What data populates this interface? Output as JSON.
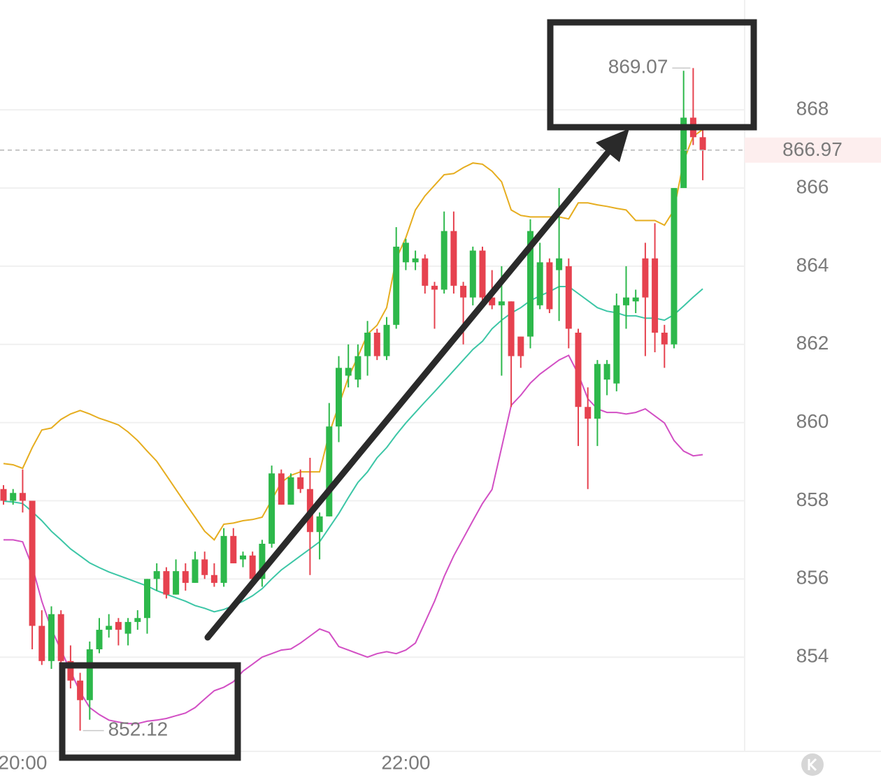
{
  "chart_data": {
    "type": "candlestick",
    "categories": [
      null,
      null,
      "20:00",
      null,
      null,
      null,
      null,
      null,
      null,
      null,
      null,
      null,
      null,
      null,
      null,
      null,
      null,
      null,
      null,
      null,
      null,
      null,
      null,
      null,
      null,
      null,
      null,
      null,
      null,
      null,
      null,
      null,
      null,
      null,
      null,
      null,
      null,
      null,
      null,
      null,
      null,
      null,
      "22:00",
      null,
      null,
      null,
      null,
      null,
      null,
      null,
      null,
      null,
      null,
      null,
      null,
      null,
      null,
      null,
      null,
      null,
      null,
      null,
      null,
      null,
      null,
      null,
      null,
      null,
      null,
      null,
      null,
      null,
      null,
      null
    ],
    "open": [
      858.3,
      858.0,
      858.2,
      858.0,
      854.8,
      853.9,
      855.1,
      853.9,
      853.4,
      852.9,
      854.2,
      854.7,
      854.9,
      854.6,
      854.9,
      855.0,
      856.0,
      856.2,
      855.6,
      856.2,
      855.9,
      856.5,
      856.1,
      855.9,
      857.1,
      856.5,
      856.6,
      856.0,
      856.9,
      858.7,
      857.9,
      858.6,
      858.3,
      857.2,
      857.6,
      859.9,
      861.2,
      861.1,
      861.7,
      862.3,
      861.7,
      862.5,
      864.1,
      864.1,
      864.2,
      863.5,
      863.4,
      864.9,
      863.5,
      863.2,
      864.4,
      863.2,
      863.0,
      863.1,
      862.2,
      862.2,
      863.0,
      864.1,
      863.9,
      864.0,
      862.3,
      860.4,
      860.1,
      861.1,
      861.0,
      863.0,
      863.1,
      864.2,
      864.2,
      862.3,
      862.0,
      866.0,
      867.8,
      867.3
    ],
    "high": [
      858.4,
      858.3,
      858.8,
      858.0,
      855.2,
      855.3,
      855.2,
      854.3,
      853.6,
      854.4,
      855.0,
      855.1,
      855.0,
      855.0,
      855.2,
      856.0,
      856.4,
      856.3,
      856.5,
      856.4,
      856.7,
      856.7,
      856.4,
      857.3,
      857.3,
      856.7,
      856.7,
      857.0,
      858.9,
      858.8,
      858.7,
      858.8,
      859.1,
      857.7,
      860.5,
      861.7,
      862.0,
      862.0,
      862.6,
      862.4,
      862.7,
      865.0,
      864.7,
      864.4,
      864.3,
      863.6,
      865.4,
      865.4,
      863.6,
      864.5,
      864.5,
      863.9,
      864.0,
      863.1,
      862.2,
      865.2,
      864.6,
      864.2,
      866.0,
      864.2,
      862.4,
      860.9,
      861.6,
      861.6,
      863.3,
      864.0,
      863.4,
      864.6,
      865.1,
      862.5,
      866.0,
      869.0,
      869.07,
      867.5
    ],
    "low": [
      857.9,
      857.9,
      857.7,
      854.2,
      853.8,
      853.7,
      853.6,
      853.2,
      852.12,
      852.4,
      854.1,
      854.5,
      854.3,
      854.3,
      854.7,
      854.6,
      855.7,
      855.5,
      855.6,
      855.7,
      855.9,
      856.0,
      855.8,
      855.8,
      856.4,
      856.3,
      855.9,
      855.8,
      856.8,
      857.9,
      857.9,
      858.2,
      856.1,
      856.5,
      857.6,
      859.5,
      860.9,
      860.9,
      861.2,
      861.6,
      861.6,
      862.4,
      863.9,
      863.9,
      863.3,
      862.4,
      863.3,
      863.3,
      862.0,
      863.0,
      863.0,
      862.9,
      861.2,
      860.4,
      861.4,
      861.9,
      862.9,
      862.8,
      862.6,
      861.9,
      859.4,
      858.3,
      859.4,
      860.7,
      860.8,
      862.4,
      862.8,
      861.7,
      861.8,
      861.4,
      861.9,
      866.0,
      867.1,
      866.2
    ],
    "close": [
      858.0,
      858.2,
      858.0,
      854.8,
      853.9,
      855.1,
      853.9,
      853.4,
      852.9,
      854.2,
      854.7,
      854.8,
      854.7,
      854.9,
      855.0,
      856.0,
      856.2,
      855.6,
      856.2,
      855.9,
      856.5,
      856.1,
      855.9,
      857.1,
      856.4,
      856.6,
      856.0,
      856.9,
      858.7,
      857.9,
      858.6,
      858.3,
      857.2,
      857.6,
      859.9,
      861.4,
      861.4,
      861.7,
      862.3,
      861.7,
      862.5,
      864.5,
      864.6,
      864.2,
      863.5,
      863.4,
      864.9,
      863.5,
      863.2,
      864.4,
      863.2,
      863.0,
      863.1,
      861.7,
      861.7,
      864.9,
      864.1,
      862.9,
      864.2,
      862.4,
      860.4,
      860.1,
      861.5,
      861.5,
      863.0,
      863.2,
      863.2,
      863.2,
      862.3,
      862.0,
      866.0,
      867.8,
      867.3,
      866.97
    ],
    "up_color": "#2db84b",
    "down_color": "#e6424f",
    "lines": [
      {
        "color": "#e6ad1f",
        "values": [
          858.95,
          858.92,
          858.83,
          859.36,
          859.81,
          859.86,
          860.08,
          860.22,
          860.31,
          860.22,
          860.11,
          860.03,
          859.94,
          859.76,
          859.54,
          859.27,
          859.01,
          858.65,
          858.29,
          857.93,
          857.58,
          857.22,
          857.0,
          857.4,
          857.43,
          857.49,
          857.52,
          857.58,
          858.02,
          858.47,
          858.65,
          858.74,
          858.74,
          858.74,
          859.72,
          860.44,
          861.15,
          861.69,
          862.26,
          862.49,
          862.94,
          864.19,
          864.73,
          865.44,
          865.8,
          866.07,
          866.34,
          866.37,
          866.52,
          866.64,
          866.61,
          866.43,
          866.16,
          865.44,
          865.3,
          865.26,
          865.26,
          865.26,
          865.26,
          865.21,
          865.62,
          865.62,
          865.57,
          865.53,
          865.48,
          865.44,
          865.17,
          865.17,
          865.17,
          865.05,
          865.44,
          866.69,
          867.32,
          867.5
        ]
      },
      {
        "color": "#3cc6a6",
        "values": [
          857.99,
          857.97,
          857.93,
          857.72,
          857.49,
          857.22,
          857.0,
          856.77,
          856.59,
          856.41,
          856.29,
          856.18,
          856.09,
          856.0,
          855.91,
          855.82,
          855.7,
          855.61,
          855.52,
          855.43,
          855.32,
          855.25,
          855.16,
          855.22,
          855.32,
          855.43,
          855.57,
          855.75,
          856.0,
          856.23,
          856.41,
          856.59,
          856.77,
          856.95,
          857.31,
          857.67,
          858.08,
          858.47,
          858.74,
          859.1,
          859.36,
          859.69,
          859.99,
          860.26,
          860.53,
          860.79,
          861.06,
          861.33,
          861.6,
          861.87,
          862.08,
          862.4,
          862.62,
          862.8,
          862.94,
          863.12,
          863.24,
          863.35,
          863.48,
          863.48,
          863.3,
          863.12,
          862.94,
          862.85,
          862.81,
          862.73,
          862.73,
          862.67,
          862.67,
          862.62,
          862.76,
          862.98,
          863.21,
          863.42
        ]
      },
      {
        "color": "#d24fc4",
        "values": [
          857.0,
          857.0,
          856.95,
          856.32,
          855.43,
          854.72,
          854.18,
          853.64,
          853.11,
          852.71,
          852.53,
          852.39,
          852.34,
          852.3,
          852.3,
          852.36,
          852.39,
          852.43,
          852.5,
          852.57,
          852.71,
          852.93,
          853.14,
          853.23,
          853.37,
          853.64,
          853.82,
          854.0,
          854.09,
          854.18,
          854.21,
          854.36,
          854.54,
          854.72,
          854.63,
          854.27,
          854.18,
          854.09,
          854.0,
          854.09,
          854.14,
          854.09,
          854.18,
          854.36,
          854.89,
          855.43,
          856.06,
          856.59,
          857.04,
          857.49,
          857.93,
          858.29,
          859.36,
          860.44,
          860.7,
          861.01,
          861.24,
          861.42,
          861.6,
          861.72,
          861.24,
          860.61,
          860.35,
          860.26,
          860.26,
          860.22,
          860.26,
          860.35,
          860.17,
          859.99,
          859.54,
          859.27,
          859.15,
          859.18
        ]
      }
    ],
    "ylim": [
      851.59,
      870.81
    ],
    "yticks": [
      854,
      856,
      858,
      860,
      862,
      864,
      866,
      868
    ],
    "grid": true
  }
}
